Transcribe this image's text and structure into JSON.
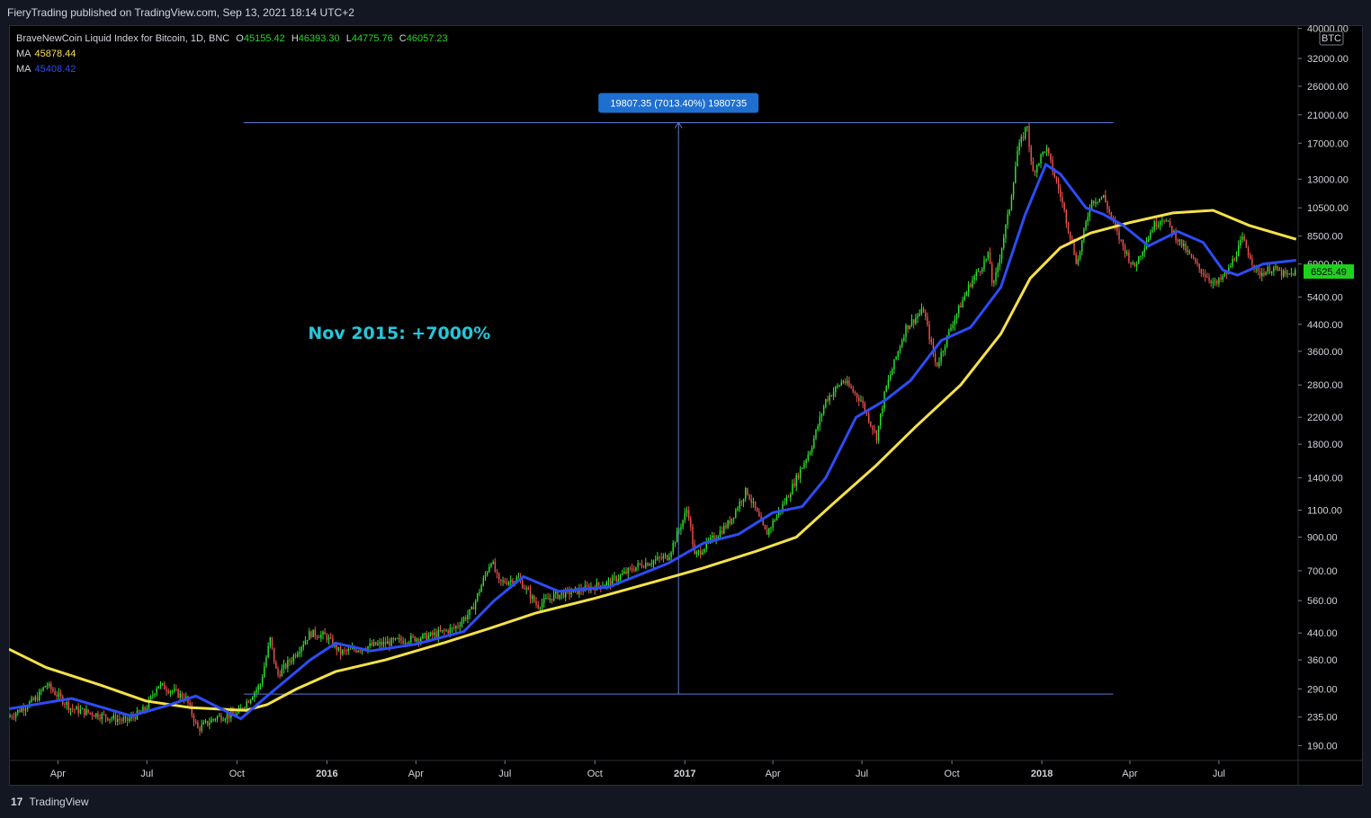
{
  "header": {
    "published_text": "FieryTrading published on TradingView.com, Sep 13, 2021 18:14 UTC+2"
  },
  "legend": {
    "symbol": "BraveNewCoin Liquid Index for Bitcoin, 1D, BNC",
    "open_label": "O",
    "open": "45155.42",
    "high_label": "H",
    "high": "46393.30",
    "low_label": "L",
    "low": "44775.76",
    "close_label": "C",
    "close": "46057.23",
    "ma1_label": "MA",
    "ma1": "45878.44",
    "ma2_label": "MA",
    "ma2": "45408.42"
  },
  "footer": {
    "brand": "TradingView",
    "logo_glyph": "17"
  },
  "colors": {
    "background": "#000000",
    "up": "#26a69a",
    "up_bright": "#2ee62e",
    "down": "#ef5350",
    "ma_fast": "#2d4cf5",
    "ma_slow": "#f5e14a",
    "measure": "#5b7bd6",
    "measure_label_bg": "#1e6fd0",
    "annotation": "#26c6da",
    "price_tag": "#1fd11f"
  },
  "chart_data": {
    "type": "candlestick",
    "scale": "log",
    "currency_badge": "BTC",
    "x_ticks": [
      {
        "label": "Apr",
        "date": "2015-04-01"
      },
      {
        "label": "Jul",
        "date": "2015-07-01"
      },
      {
        "label": "Oct",
        "date": "2015-10-01"
      },
      {
        "label": "2016",
        "date": "2016-01-01",
        "bold": true
      },
      {
        "label": "Apr",
        "date": "2016-04-01"
      },
      {
        "label": "Jul",
        "date": "2016-07-01"
      },
      {
        "label": "Oct",
        "date": "2016-10-01"
      },
      {
        "label": "2017",
        "date": "2017-01-01",
        "bold": true
      },
      {
        "label": "Apr",
        "date": "2017-04-01"
      },
      {
        "label": "Jul",
        "date": "2017-07-01"
      },
      {
        "label": "Oct",
        "date": "2017-10-01"
      },
      {
        "label": "2018",
        "date": "2018-01-01",
        "bold": true
      },
      {
        "label": "Apr",
        "date": "2018-04-01"
      },
      {
        "label": "Jul",
        "date": "2018-07-01"
      }
    ],
    "x_range": [
      "2015-02-10",
      "2018-09-20"
    ],
    "y_ticks": [
      "40000.00",
      "32000.00",
      "26000.00",
      "21000.00",
      "17000.00",
      "13000.00",
      "10500.00",
      "8500.00",
      "6900.00",
      "5400.00",
      "4400.00",
      "3600.00",
      "2800.00",
      "2200.00",
      "1800.00",
      "1400.00",
      "1100.00",
      "900.00",
      "700.00",
      "560.00",
      "440.00",
      "360.00",
      "290.00",
      "235.00",
      "190.00"
    ],
    "y_range": [
      170,
      41000
    ],
    "price_path": [
      [
        "2015-02-10",
        235
      ],
      [
        "2015-03-10",
        270
      ],
      [
        "2015-03-20",
        300
      ],
      [
        "2015-04-15",
        250
      ],
      [
        "2015-05-15",
        238
      ],
      [
        "2015-06-10",
        228
      ],
      [
        "2015-06-30",
        250
      ],
      [
        "2015-07-12",
        300
      ],
      [
        "2015-07-25",
        288
      ],
      [
        "2015-08-10",
        270
      ],
      [
        "2015-08-22",
        215
      ],
      [
        "2015-09-10",
        235
      ],
      [
        "2015-10-01",
        240
      ],
      [
        "2015-10-25",
        300
      ],
      [
        "2015-11-04",
        420
      ],
      [
        "2015-11-11",
        320
      ],
      [
        "2015-11-25",
        360
      ],
      [
        "2015-12-15",
        440
      ],
      [
        "2015-12-31",
        430
      ],
      [
        "2016-01-15",
        380
      ],
      [
        "2016-02-15",
        400
      ],
      [
        "2016-03-15",
        415
      ],
      [
        "2016-04-15",
        430
      ],
      [
        "2016-05-10",
        455
      ],
      [
        "2016-05-28",
        520
      ],
      [
        "2016-06-17",
        760
      ],
      [
        "2016-06-25",
        640
      ],
      [
        "2016-07-15",
        660
      ],
      [
        "2016-08-03",
        540
      ],
      [
        "2016-08-20",
        580
      ],
      [
        "2016-09-15",
        605
      ],
      [
        "2016-10-15",
        640
      ],
      [
        "2016-11-15",
        730
      ],
      [
        "2016-12-15",
        780
      ],
      [
        "2017-01-04",
        1120
      ],
      [
        "2017-01-11",
        780
      ],
      [
        "2017-02-15",
        1000
      ],
      [
        "2017-03-05",
        1280
      ],
      [
        "2017-03-25",
        920
      ],
      [
        "2017-04-15",
        1200
      ],
      [
        "2017-05-10",
        1750
      ],
      [
        "2017-05-25",
        2500
      ],
      [
        "2017-06-12",
        2900
      ],
      [
        "2017-06-30",
        2500
      ],
      [
        "2017-07-16",
        1900
      ],
      [
        "2017-07-25",
        2700
      ],
      [
        "2017-08-15",
        4300
      ],
      [
        "2017-09-02",
        4900
      ],
      [
        "2017-09-15",
        3200
      ],
      [
        "2017-10-01",
        4400
      ],
      [
        "2017-10-20",
        6000
      ],
      [
        "2017-11-08",
        7400
      ],
      [
        "2017-11-12",
        5700
      ],
      [
        "2017-11-29",
        10500
      ],
      [
        "2017-12-07",
        16000
      ],
      [
        "2017-12-17",
        19500
      ],
      [
        "2017-12-22",
        13500
      ],
      [
        "2018-01-05",
        16500
      ],
      [
        "2018-01-20",
        11500
      ],
      [
        "2018-02-06",
        6900
      ],
      [
        "2018-02-20",
        11000
      ],
      [
        "2018-03-05",
        11400
      ],
      [
        "2018-03-20",
        8500
      ],
      [
        "2018-04-05",
        6700
      ],
      [
        "2018-04-25",
        9200
      ],
      [
        "2018-05-05",
        9800
      ],
      [
        "2018-05-20",
        8300
      ],
      [
        "2018-06-10",
        6700
      ],
      [
        "2018-06-28",
        5900
      ],
      [
        "2018-07-10",
        6500
      ],
      [
        "2018-07-25",
        8300
      ],
      [
        "2018-08-10",
        6400
      ],
      [
        "2018-08-25",
        6700
      ],
      [
        "2018-09-08",
        6300
      ],
      [
        "2018-09-18",
        6525
      ]
    ],
    "ma_fast_path": [
      [
        "2015-02-10",
        250
      ],
      [
        "2015-04-15",
        270
      ],
      [
        "2015-06-15",
        237
      ],
      [
        "2015-07-20",
        255
      ],
      [
        "2015-08-20",
        275
      ],
      [
        "2015-10-05",
        232
      ],
      [
        "2015-11-01",
        275
      ],
      [
        "2015-12-15",
        360
      ],
      [
        "2016-01-10",
        408
      ],
      [
        "2016-02-15",
        385
      ],
      [
        "2016-04-01",
        405
      ],
      [
        "2016-05-20",
        445
      ],
      [
        "2016-06-20",
        560
      ],
      [
        "2016-07-20",
        670
      ],
      [
        "2016-08-25",
        600
      ],
      [
        "2016-10-15",
        620
      ],
      [
        "2016-12-15",
        740
      ],
      [
        "2017-01-20",
        860
      ],
      [
        "2017-02-25",
        920
      ],
      [
        "2017-04-01",
        1080
      ],
      [
        "2017-05-01",
        1130
      ],
      [
        "2017-05-25",
        1400
      ],
      [
        "2017-06-25",
        2200
      ],
      [
        "2017-07-25",
        2500
      ],
      [
        "2017-08-20",
        2900
      ],
      [
        "2017-09-20",
        3900
      ],
      [
        "2017-10-20",
        4300
      ],
      [
        "2017-11-20",
        5800
      ],
      [
        "2017-12-15",
        10000
      ],
      [
        "2018-01-05",
        14500
      ],
      [
        "2018-01-20",
        13500
      ],
      [
        "2018-02-15",
        10500
      ],
      [
        "2018-03-05",
        10000
      ],
      [
        "2018-03-25",
        9200
      ],
      [
        "2018-04-20",
        7900
      ],
      [
        "2018-05-20",
        8800
      ],
      [
        "2018-06-15",
        8100
      ],
      [
        "2018-07-05",
        6600
      ],
      [
        "2018-07-20",
        6350
      ],
      [
        "2018-08-15",
        6900
      ],
      [
        "2018-09-18",
        7100
      ]
    ],
    "ma_slow_path": [
      [
        "2015-02-10",
        390
      ],
      [
        "2015-03-20",
        340
      ],
      [
        "2015-05-15",
        298
      ],
      [
        "2015-06-30",
        265
      ],
      [
        "2015-08-15",
        252
      ],
      [
        "2015-10-10",
        247
      ],
      [
        "2015-11-01",
        258
      ],
      [
        "2015-12-01",
        290
      ],
      [
        "2016-01-10",
        330
      ],
      [
        "2016-03-01",
        360
      ],
      [
        "2016-05-01",
        410
      ],
      [
        "2016-06-15",
        455
      ],
      [
        "2016-08-01",
        510
      ],
      [
        "2016-10-01",
        570
      ],
      [
        "2016-12-01",
        645
      ],
      [
        "2017-01-20",
        715
      ],
      [
        "2017-03-15",
        810
      ],
      [
        "2017-04-25",
        900
      ],
      [
        "2017-06-01",
        1150
      ],
      [
        "2017-07-15",
        1530
      ],
      [
        "2017-08-25",
        2050
      ],
      [
        "2017-10-10",
        2800
      ],
      [
        "2017-11-20",
        4100
      ],
      [
        "2017-12-20",
        6200
      ],
      [
        "2018-01-20",
        7800
      ],
      [
        "2018-02-20",
        8700
      ],
      [
        "2018-04-01",
        9400
      ],
      [
        "2018-05-15",
        10100
      ],
      [
        "2018-06-25",
        10300
      ],
      [
        "2018-08-01",
        9200
      ],
      [
        "2018-09-18",
        8300
      ]
    ],
    "measure": {
      "start_date": "2015-10-08",
      "end_date": "2018-03-15",
      "low_price": 279,
      "high_price": 19807.35,
      "label": "19807.35 (7013.40%) 1980735"
    },
    "annotation": {
      "text": "Nov 2015: +7000%",
      "date": "2016-03-15",
      "price": 3950
    },
    "last_price": {
      "value": 6525.49,
      "label": "6525.49"
    }
  }
}
